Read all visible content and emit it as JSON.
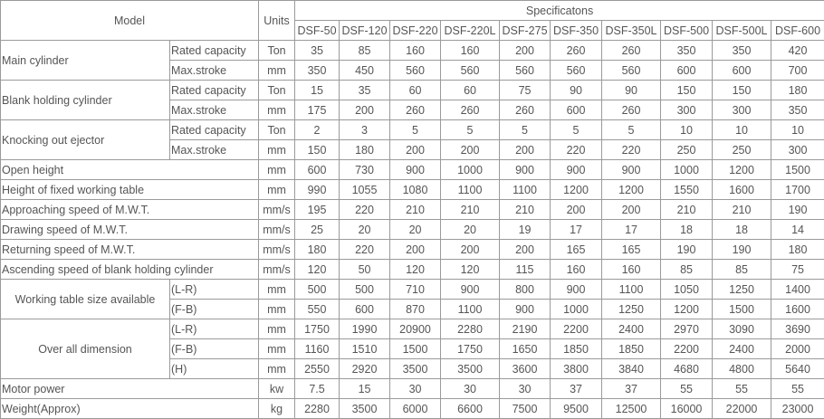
{
  "header": {
    "model_label": "Model",
    "units_label": "Units",
    "specs_label": "Specificatons",
    "models": [
      "DSF-50",
      "DSF-120",
      "DSF-220",
      "DSF-220L",
      "DSF-275",
      "DSF-350",
      "DSF-350L",
      "DSF-500",
      "DSF-500L",
      "DSF-600"
    ]
  },
  "groups": [
    {
      "label": "Main cylinder",
      "align": "left",
      "rows": [
        {
          "sub": "Rated capacity",
          "unit": "Ton",
          "values": [
            "35",
            "85",
            "160",
            "160",
            "200",
            "260",
            "260",
            "350",
            "350",
            "420"
          ]
        },
        {
          "sub": "Max.stroke",
          "unit": "mm",
          "values": [
            "350",
            "450",
            "560",
            "560",
            "560",
            "560",
            "560",
            "600",
            "600",
            "700"
          ]
        }
      ]
    },
    {
      "label": "Blank holding cylinder",
      "align": "left",
      "rows": [
        {
          "sub": "Rated capacity",
          "unit": "Ton",
          "values": [
            "15",
            "35",
            "60",
            "60",
            "75",
            "90",
            "90",
            "150",
            "150",
            "180"
          ]
        },
        {
          "sub": "Max.stroke",
          "unit": "mm",
          "values": [
            "175",
            "200",
            "260",
            "260",
            "260",
            "600",
            "260",
            "300",
            "300",
            "350"
          ]
        }
      ]
    },
    {
      "label": "Knocking out ejector",
      "align": "left",
      "rows": [
        {
          "sub": "Rated capacity",
          "unit": "Ton",
          "values": [
            "2",
            "3",
            "5",
            "5",
            "5",
            "5",
            "5",
            "10",
            "10",
            "10"
          ]
        },
        {
          "sub": "Max.stroke",
          "unit": "mm",
          "values": [
            "150",
            "180",
            "200",
            "200",
            "200",
            "220",
            "220",
            "250",
            "250",
            "300"
          ]
        }
      ]
    },
    {
      "label": "Open height",
      "rows": [
        {
          "unit": "mm",
          "values": [
            "600",
            "730",
            "900",
            "1000",
            "900",
            "900",
            "900",
            "1000",
            "1200",
            "1500"
          ]
        }
      ]
    },
    {
      "label": "Height of fixed working table",
      "rows": [
        {
          "unit": "mm",
          "values": [
            "990",
            "1055",
            "1080",
            "1100",
            "1100",
            "1200",
            "1200",
            "1550",
            "1600",
            "1700"
          ]
        }
      ]
    },
    {
      "label": "Approaching speed of M.W.T.",
      "rows": [
        {
          "unit": "mm/s",
          "values": [
            "195",
            "220",
            "210",
            "210",
            "210",
            "200",
            "200",
            "210",
            "210",
            "190"
          ]
        }
      ]
    },
    {
      "label": "Drawing speed of M.W.T.",
      "rows": [
        {
          "unit": "mm/s",
          "values": [
            "25",
            "20",
            "20",
            "20",
            "19",
            "17",
            "17",
            "18",
            "18",
            "14"
          ]
        }
      ]
    },
    {
      "label": "Returning speed of M.W.T.",
      "rows": [
        {
          "unit": "mm/s",
          "values": [
            "180",
            "220",
            "200",
            "200",
            "200",
            "165",
            "165",
            "190",
            "190",
            "180"
          ]
        }
      ]
    },
    {
      "label": "Ascending speed of blank holding cylinder",
      "rows": [
        {
          "unit": "mm/s",
          "values": [
            "120",
            "50",
            "120",
            "120",
            "115",
            "160",
            "160",
            "85",
            "85",
            "75"
          ]
        }
      ]
    },
    {
      "label": "Working table size available",
      "align": "center",
      "rows": [
        {
          "sub": "(L-R)",
          "unit": "mm",
          "values": [
            "500",
            "500",
            "710",
            "900",
            "800",
            "900",
            "1100",
            "1050",
            "1250",
            "1400"
          ]
        },
        {
          "sub": "(F-B)",
          "unit": "mm",
          "values": [
            "550",
            "600",
            "870",
            "1100",
            "900",
            "1000",
            "1250",
            "1200",
            "1500",
            "1600"
          ]
        }
      ]
    },
    {
      "label": "Over all dimension",
      "align": "center",
      "rows": [
        {
          "sub": "(L-R)",
          "unit": "mm",
          "values": [
            "1750",
            "1990",
            "20900",
            "2280",
            "2190",
            "2200",
            "2400",
            "2970",
            "3090",
            "3690"
          ]
        },
        {
          "sub": "(F-B)",
          "unit": "mm",
          "values": [
            "1160",
            "1510",
            "1500",
            "1750",
            "1650",
            "1850",
            "1850",
            "2200",
            "2400",
            "2000"
          ]
        },
        {
          "sub": "(H)",
          "unit": "mm",
          "values": [
            "2550",
            "2920",
            "3500",
            "3500",
            "3600",
            "3800",
            "3840",
            "4680",
            "4800",
            "5640"
          ]
        }
      ]
    },
    {
      "label": "Motor power",
      "rows": [
        {
          "unit": "kw",
          "values": [
            "7.5",
            "15",
            "30",
            "30",
            "30",
            "37",
            "37",
            "55",
            "55",
            "55"
          ]
        }
      ]
    },
    {
      "label": "Weight(Approx)",
      "rows": [
        {
          "unit": "kg",
          "values": [
            "2280",
            "3500",
            "6000",
            "6600",
            "7500",
            "9500",
            "12500",
            "16000",
            "22000",
            "23000"
          ]
        }
      ]
    }
  ]
}
